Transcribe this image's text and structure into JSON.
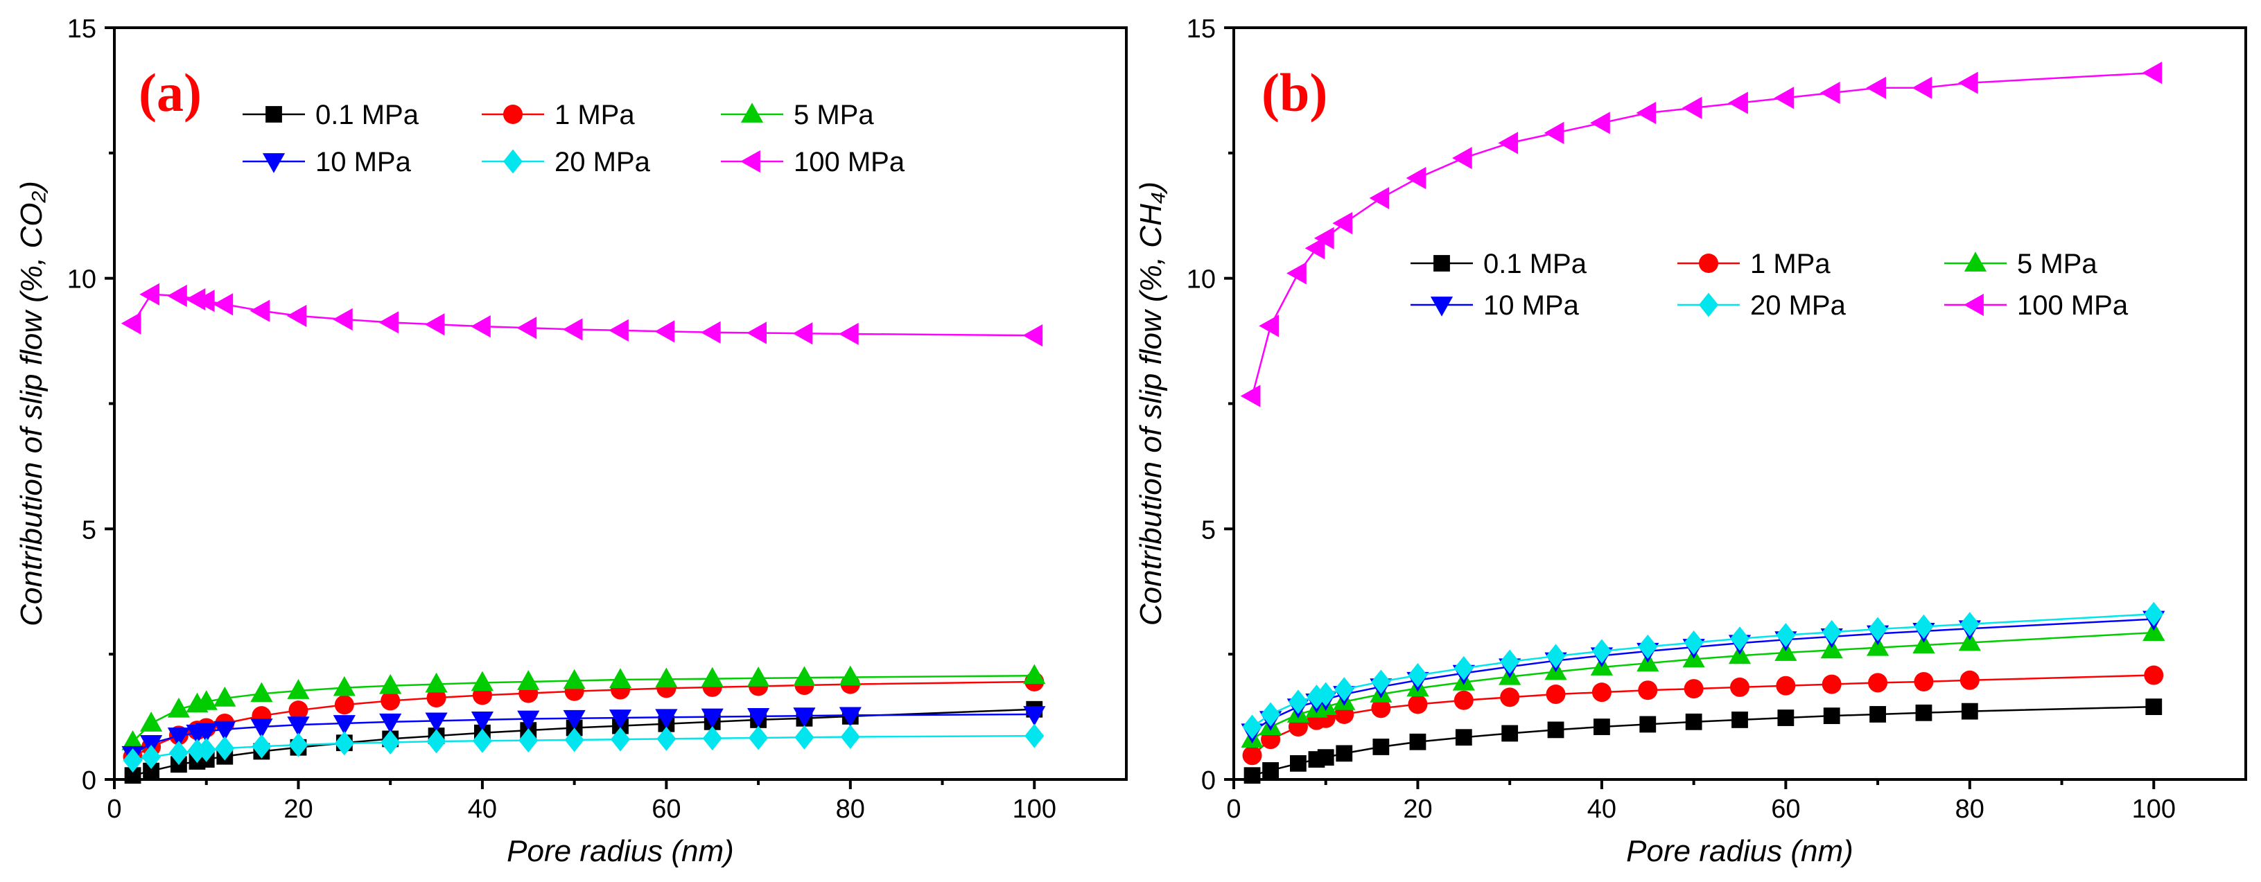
{
  "chart_data": [
    {
      "type": "line",
      "panel_label": "(a)",
      "title": "",
      "xlabel": "Pore radius (nm)",
      "ylabel": "Contribution of slip flow (%, CO₂)",
      "xlim": [
        0,
        110
      ],
      "ylim": [
        0,
        15
      ],
      "xticks": [
        0,
        20,
        40,
        60,
        80,
        100
      ],
      "yticks": [
        0,
        5,
        10,
        15
      ],
      "grid": false,
      "legend_position": "top-center",
      "x": [
        2,
        4,
        7,
        9,
        10,
        12,
        16,
        20,
        25,
        30,
        35,
        40,
        45,
        50,
        55,
        60,
        65,
        70,
        75,
        80,
        100
      ],
      "series": [
        {
          "name": "0.1 MPa",
          "marker": "square",
          "color": "#000000",
          "values": [
            0.08,
            0.17,
            0.3,
            0.36,
            0.4,
            0.46,
            0.56,
            0.64,
            0.73,
            0.81,
            0.87,
            0.93,
            0.98,
            1.03,
            1.07,
            1.11,
            1.15,
            1.19,
            1.22,
            1.26,
            1.4
          ]
        },
        {
          "name": "1 MPa",
          "marker": "circle",
          "color": "#ff0000",
          "values": [
            0.45,
            0.65,
            0.88,
            0.98,
            1.03,
            1.12,
            1.27,
            1.38,
            1.49,
            1.57,
            1.63,
            1.68,
            1.72,
            1.76,
            1.79,
            1.82,
            1.84,
            1.86,
            1.88,
            1.9,
            1.95
          ]
        },
        {
          "name": "5 MPa",
          "marker": "triangle-up",
          "color": "#00cc00",
          "values": [
            0.75,
            1.12,
            1.4,
            1.5,
            1.55,
            1.62,
            1.71,
            1.77,
            1.83,
            1.87,
            1.9,
            1.93,
            1.95,
            1.97,
            1.99,
            2.0,
            2.01,
            2.02,
            2.03,
            2.04,
            2.07
          ]
        },
        {
          "name": "10 MPa",
          "marker": "triangle-down",
          "color": "#0000ff",
          "values": [
            0.5,
            0.72,
            0.87,
            0.93,
            0.96,
            1.0,
            1.05,
            1.09,
            1.12,
            1.15,
            1.17,
            1.19,
            1.21,
            1.22,
            1.23,
            1.24,
            1.25,
            1.26,
            1.27,
            1.28,
            1.3
          ]
        },
        {
          "name": "20 MPa",
          "marker": "diamond",
          "color": "#00e5ee",
          "values": [
            0.38,
            0.45,
            0.53,
            0.57,
            0.59,
            0.62,
            0.66,
            0.69,
            0.72,
            0.74,
            0.76,
            0.77,
            0.78,
            0.79,
            0.8,
            0.81,
            0.82,
            0.83,
            0.84,
            0.85,
            0.87
          ]
        },
        {
          "name": "100 MPa",
          "marker": "triangle-left",
          "color": "#ff00ff",
          "values": [
            9.1,
            9.68,
            9.65,
            9.58,
            9.55,
            9.48,
            9.35,
            9.25,
            9.18,
            9.12,
            9.08,
            9.04,
            9.01,
            8.98,
            8.96,
            8.94,
            8.92,
            8.91,
            8.9,
            8.89,
            8.86
          ]
        }
      ]
    },
    {
      "type": "line",
      "panel_label": "(b)",
      "title": "",
      "xlabel": "Pore radius (nm)",
      "ylabel": "Contribution of slip flow (%, CH₄)",
      "xlim": [
        0,
        110
      ],
      "ylim": [
        0,
        15
      ],
      "xticks": [
        0,
        20,
        40,
        60,
        80,
        100
      ],
      "yticks": [
        0,
        5,
        10,
        15
      ],
      "grid": false,
      "legend_position": "center-right",
      "x": [
        2,
        4,
        7,
        9,
        10,
        12,
        16,
        20,
        25,
        30,
        35,
        40,
        45,
        50,
        55,
        60,
        65,
        70,
        75,
        80,
        100
      ],
      "series": [
        {
          "name": "0.1 MPa",
          "marker": "square",
          "color": "#000000",
          "values": [
            0.08,
            0.18,
            0.32,
            0.4,
            0.44,
            0.52,
            0.65,
            0.75,
            0.84,
            0.92,
            0.99,
            1.05,
            1.1,
            1.15,
            1.19,
            1.23,
            1.27,
            1.3,
            1.33,
            1.36,
            1.45
          ]
        },
        {
          "name": "1 MPa",
          "marker": "circle",
          "color": "#ff0000",
          "values": [
            0.48,
            0.8,
            1.05,
            1.18,
            1.22,
            1.3,
            1.42,
            1.5,
            1.58,
            1.64,
            1.7,
            1.74,
            1.78,
            1.81,
            1.84,
            1.87,
            1.9,
            1.93,
            1.95,
            1.98,
            2.08
          ]
        },
        {
          "name": "5 MPa",
          "marker": "triangle-up",
          "color": "#00cc00",
          "values": [
            0.8,
            1.05,
            1.3,
            1.4,
            1.45,
            1.55,
            1.7,
            1.82,
            1.94,
            2.05,
            2.15,
            2.24,
            2.32,
            2.4,
            2.47,
            2.53,
            2.58,
            2.63,
            2.68,
            2.73,
            2.93
          ]
        },
        {
          "name": "10 MPa",
          "marker": "triangle-down",
          "color": "#0000ff",
          "values": [
            0.95,
            1.2,
            1.45,
            1.55,
            1.6,
            1.7,
            1.85,
            1.98,
            2.12,
            2.25,
            2.37,
            2.47,
            2.56,
            2.64,
            2.72,
            2.79,
            2.85,
            2.91,
            2.96,
            3.01,
            3.2
          ]
        },
        {
          "name": "20 MPa",
          "marker": "diamond",
          "color": "#00e5ee",
          "values": [
            1.05,
            1.3,
            1.55,
            1.65,
            1.7,
            1.8,
            1.95,
            2.08,
            2.22,
            2.35,
            2.46,
            2.56,
            2.65,
            2.73,
            2.81,
            2.88,
            2.94,
            3.0,
            3.05,
            3.1,
            3.3
          ]
        },
        {
          "name": "100 MPa",
          "marker": "triangle-left",
          "color": "#ff00ff",
          "values": [
            7.65,
            9.05,
            10.1,
            10.6,
            10.8,
            11.1,
            11.6,
            12.0,
            12.4,
            12.7,
            12.9,
            13.1,
            13.3,
            13.4,
            13.5,
            13.6,
            13.7,
            13.8,
            13.8,
            13.9,
            14.1
          ]
        }
      ]
    }
  ]
}
